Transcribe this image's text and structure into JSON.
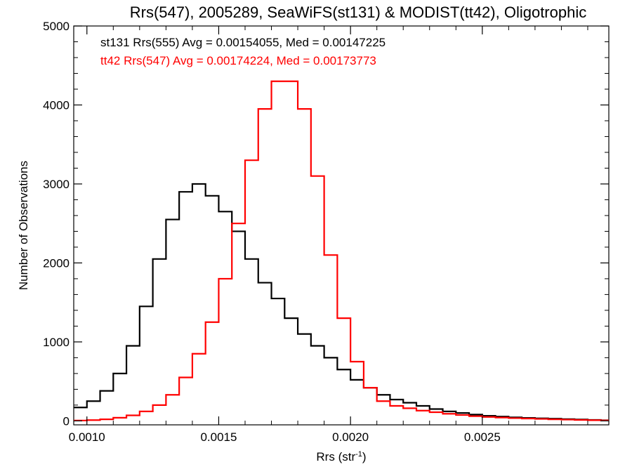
{
  "chart_data": {
    "type": "line",
    "title": "Rrs(547), 2005289, SeaWiFS(st131) & MODIST(tt42), Oligotrophic",
    "xlabel": "Rrs (str",
    "xlabel_superscript": "-1",
    "xlabel_close": ")",
    "ylabel": "Number of Observations",
    "xlim": [
      0.00095,
      0.00298
    ],
    "ylim": [
      -50,
      5000
    ],
    "x_ticks": [
      0.001,
      0.0015,
      0.002,
      0.0025
    ],
    "x_tick_labels": [
      "0.0010",
      "0.0015",
      "0.0020",
      "0.0025"
    ],
    "y_ticks": [
      0,
      1000,
      2000,
      3000,
      4000,
      5000
    ],
    "y_tick_labels": [
      "0",
      "1000",
      "2000",
      "3000",
      "4000",
      "5000"
    ],
    "grid": false,
    "annotations": [
      {
        "text": "st131 Rrs(555) Avg = 0.00154055, Med = 0.00147225",
        "color": "#000000"
      },
      {
        "text": "tt42 Rrs(547) Avg = 0.00174224, Med = 0.00173773",
        "color": "#ff0000"
      }
    ],
    "series": [
      {
        "color": "#000000",
        "x": [
          0.00095,
          0.001,
          0.00105,
          0.0011,
          0.00115,
          0.0012,
          0.00125,
          0.0013,
          0.00135,
          0.0014,
          0.00145,
          0.0015,
          0.00155,
          0.0016,
          0.00165,
          0.0017,
          0.00175,
          0.0018,
          0.00185,
          0.0019,
          0.00195,
          0.002,
          0.00205,
          0.0021,
          0.00215,
          0.0022,
          0.00225,
          0.0023,
          0.00235,
          0.0024,
          0.00245,
          0.0025,
          0.00255,
          0.0026,
          0.00265,
          0.0027,
          0.00275,
          0.0028,
          0.00285,
          0.0029,
          0.00295
        ],
        "y": [
          170,
          250,
          380,
          600,
          950,
          1450,
          2050,
          2550,
          2900,
          3000,
          2850,
          2650,
          2400,
          2050,
          1750,
          1550,
          1300,
          1100,
          950,
          800,
          650,
          520,
          420,
          330,
          270,
          230,
          190,
          150,
          120,
          100,
          80,
          65,
          55,
          45,
          38,
          32,
          28,
          22,
          18,
          12,
          8
        ]
      },
      {
        "color": "#ff0000",
        "x": [
          0.00095,
          0.001,
          0.00105,
          0.0011,
          0.00115,
          0.0012,
          0.00125,
          0.0013,
          0.00135,
          0.0014,
          0.00145,
          0.0015,
          0.00155,
          0.0016,
          0.00165,
          0.0017,
          0.00175,
          0.0018,
          0.00185,
          0.0019,
          0.00195,
          0.002,
          0.00205,
          0.0021,
          0.00215,
          0.0022,
          0.00225,
          0.0023,
          0.00235,
          0.0024,
          0.00245,
          0.0025,
          0.00255,
          0.0026,
          0.00265,
          0.0027,
          0.00275,
          0.0028,
          0.00285,
          0.0029,
          0.00295
        ],
        "y": [
          5,
          10,
          20,
          40,
          70,
          120,
          200,
          330,
          550,
          850,
          1250,
          1800,
          2500,
          3300,
          3950,
          4300,
          4300,
          3950,
          3100,
          2100,
          1300,
          750,
          420,
          250,
          190,
          160,
          130,
          110,
          90,
          75,
          60,
          50,
          42,
          35,
          30,
          25,
          20,
          16,
          12,
          9,
          6
        ]
      }
    ]
  }
}
